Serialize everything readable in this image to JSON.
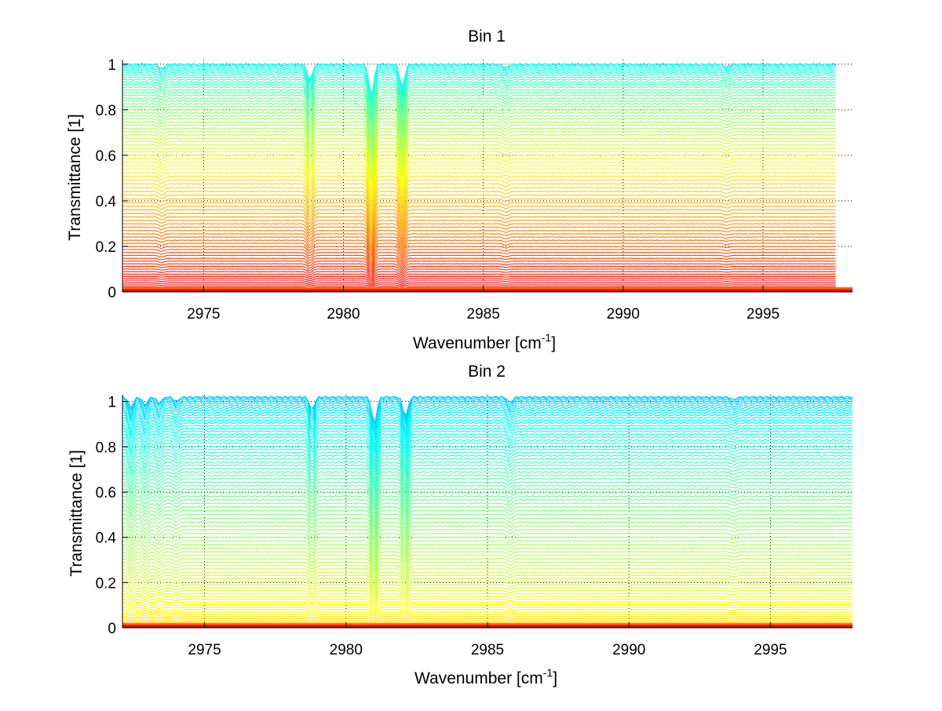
{
  "chart_data": [
    {
      "type": "line",
      "title": "Bin 1",
      "xlabel": "Wavenumber [cm",
      "xlabel_sup": "-1",
      "xlabel_suffix": "]",
      "ylabel": "Transmittance [1]",
      "xlim": [
        2972.1,
        2998.2
      ],
      "ylim": [
        0,
        1.02
      ],
      "x_data_range": [
        2972.1,
        2997.6
      ],
      "xticks": [
        2975,
        2980,
        2985,
        2990,
        2995
      ],
      "xtick_labels": [
        "2975",
        "2980",
        "2985",
        "2990",
        "2995"
      ],
      "yticks": [
        0,
        0.2,
        0.4,
        0.6,
        0.8,
        1
      ],
      "ytick_labels": [
        "0",
        "0.2",
        "0.4",
        "0.6",
        "0.8",
        "1"
      ],
      "grid": true,
      "colormap": "jet",
      "num_series": 80,
      "series_levels_range": [
        1.0,
        0.0
      ],
      "colormap_range": [
        0.38,
        0.92
      ],
      "absorption_lines": [
        {
          "x": 2973.5,
          "depth": 0.05
        },
        {
          "x": 2978.8,
          "depth": 0.18
        },
        {
          "x": 2981.0,
          "depth": 0.35
        },
        {
          "x": 2982.1,
          "depth": 0.26
        },
        {
          "x": 2985.8,
          "depth": 0.04
        },
        {
          "x": 2993.7,
          "depth": 0.03
        }
      ]
    },
    {
      "type": "line",
      "title": "Bin 2",
      "xlabel": "Wavenumber [cm",
      "xlabel_sup": "-1",
      "xlabel_suffix": "]",
      "ylabel": "Transmittance [1]",
      "xlim": [
        2972.1,
        2997.9
      ],
      "ylim": [
        0,
        1.03
      ],
      "x_data_range": [
        2972.1,
        2997.9
      ],
      "xticks": [
        2975,
        2980,
        2985,
        2990,
        2995
      ],
      "xtick_labels": [
        "2975",
        "2980",
        "2985",
        "2990",
        "2995"
      ],
      "yticks": [
        0,
        0.2,
        0.4,
        0.6,
        0.8,
        1
      ],
      "ytick_labels": [
        "0",
        "0.2",
        "0.4",
        "0.6",
        "0.8",
        "1"
      ],
      "grid": true,
      "colormap": "jet",
      "num_series": 80,
      "series_levels_range": [
        1.02,
        0.0
      ],
      "colormap_range": [
        0.32,
        0.68
      ],
      "absorption_lines": [
        {
          "x": 2972.4,
          "depth": 0.12
        },
        {
          "x": 2972.9,
          "depth": 0.09
        },
        {
          "x": 2973.4,
          "depth": 0.07
        },
        {
          "x": 2974.0,
          "depth": 0.05
        },
        {
          "x": 2978.8,
          "depth": 0.14
        },
        {
          "x": 2981.0,
          "depth": 0.3
        },
        {
          "x": 2982.1,
          "depth": 0.22
        },
        {
          "x": 2985.8,
          "depth": 0.06
        },
        {
          "x": 2993.7,
          "depth": 0.03
        }
      ]
    }
  ]
}
